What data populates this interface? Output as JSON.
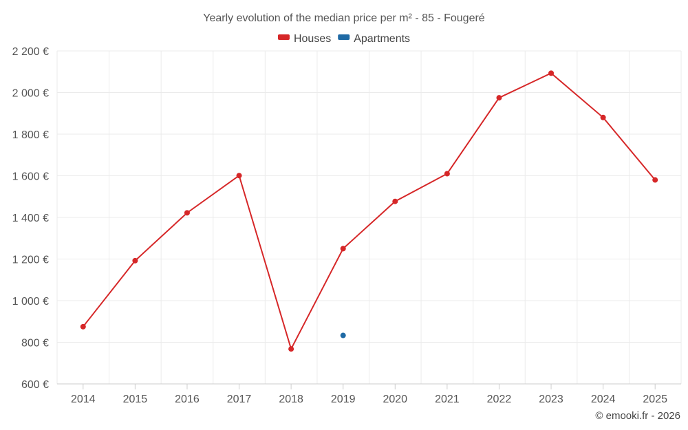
{
  "chart_data": {
    "type": "line",
    "title": "Yearly evolution of the median price per m² - 85 - Fougeré",
    "xlabel": "",
    "ylabel": "",
    "categories": [
      "2014",
      "2015",
      "2016",
      "2017",
      "2018",
      "2019",
      "2020",
      "2021",
      "2022",
      "2023",
      "2024",
      "2025"
    ],
    "ylim": [
      600,
      2200
    ],
    "yticks": [
      600,
      800,
      1000,
      1200,
      1400,
      1600,
      1800,
      2000,
      2200
    ],
    "ytick_labels": [
      "600 €",
      "800 €",
      "1 000 €",
      "1 200 €",
      "1 400 €",
      "1 600 €",
      "1 800 €",
      "2 000 €",
      "2 200 €"
    ],
    "grid": true,
    "legend_position": "top-center",
    "series": [
      {
        "name": "Houses",
        "color": "#d62728",
        "values": [
          875,
          1192,
          1422,
          1601,
          768,
          1250,
          1477,
          1610,
          1975,
          2093,
          1880,
          1580
        ]
      },
      {
        "name": "Apartments",
        "color": "#1f6aa5",
        "values": [
          null,
          null,
          null,
          null,
          null,
          833,
          null,
          null,
          null,
          null,
          null,
          null
        ]
      }
    ]
  },
  "credit": "© emooki.fr - 2026"
}
